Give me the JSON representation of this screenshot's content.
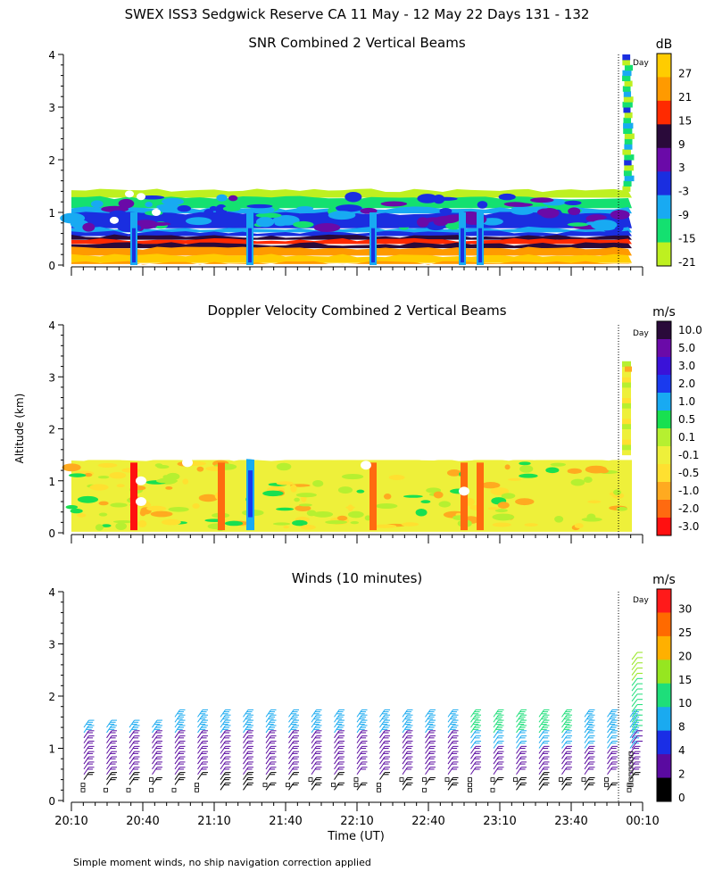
{
  "title": "SWEX ISS3 Sedgwick Reserve CA  11 May - 12 May 22 Days 131 - 132",
  "footnote": "Simple moment winds, no ship navigation correction applied",
  "ylabel": "Altitude (km)",
  "xlabel": "Time (UT)",
  "day_marker_label": "Day",
  "chart_data": [
    {
      "type": "heatmap",
      "title": "SNR Combined 2 Vertical Beams",
      "xlabel": "Time (UT)",
      "ylabel": "Altitude (km)",
      "ylim": [
        0,
        4
      ],
      "yticks": [
        "0",
        "1",
        "2",
        "3",
        "4"
      ],
      "xticks": [
        "20:10",
        "20:40",
        "21:10",
        "21:40",
        "22:10",
        "22:40",
        "23:10",
        "23:40",
        "00:10"
      ],
      "colorbar": {
        "unit": "dB",
        "labels": [
          "27",
          "21",
          "15",
          "9",
          "3",
          "-3",
          "-9",
          "-15",
          "-21"
        ],
        "colors": [
          "#ffcc00",
          "#ff9a00",
          "#ff2a00",
          "#2a0a3a",
          "#6a0aa8",
          "#1a2ee0",
          "#18aaf2",
          "#14e070",
          "#bef020"
        ]
      }
    },
    {
      "type": "heatmap",
      "title": "Doppler Velocity Combined 2 Vertical Beams",
      "xlabel": "Time (UT)",
      "ylabel": "Altitude (km)",
      "ylim": [
        0,
        4
      ],
      "yticks": [
        "0",
        "1",
        "2",
        "3",
        "4"
      ],
      "xticks": [
        "20:10",
        "20:40",
        "21:10",
        "21:40",
        "22:10",
        "22:40",
        "23:10",
        "23:40",
        "00:10"
      ],
      "colorbar": {
        "unit": "m/s",
        "labels": [
          "10.0",
          "5.0",
          "3.0",
          "2.0",
          "1.0",
          "0.5",
          "0.1",
          "-0.1",
          "-0.5",
          "-1.0",
          "-2.0",
          "-3.0"
        ],
        "colors": [
          "#2a0a3a",
          "#6a0aa8",
          "#3a12d8",
          "#1a3aee",
          "#18aaf2",
          "#18e050",
          "#b6f030",
          "#eef03a",
          "#ffe030",
          "#ffaa20",
          "#ff6a10",
          "#ff1010"
        ]
      }
    },
    {
      "type": "wind_barbs",
      "title": "Winds (10 minutes)",
      "xlabel": "Time (UT)",
      "ylabel": "Altitude (km)",
      "ylim": [
        0,
        4
      ],
      "yticks": [
        "0",
        "1",
        "2",
        "3",
        "4"
      ],
      "xticks": [
        "20:10",
        "20:40",
        "21:10",
        "21:40",
        "22:10",
        "22:40",
        "23:10",
        "23:40",
        "00:10"
      ],
      "colorbar": {
        "unit": "m/s",
        "labels": [
          "30",
          "25",
          "20",
          "15",
          "10",
          "8",
          "4",
          "2",
          "0"
        ],
        "colors": [
          "#ff1a1a",
          "#ff6a00",
          "#ffb000",
          "#96e620",
          "#1ede7a",
          "#1aaaf0",
          "#1a2ee6",
          "#5a0aa0",
          "#000000"
        ]
      }
    }
  ]
}
